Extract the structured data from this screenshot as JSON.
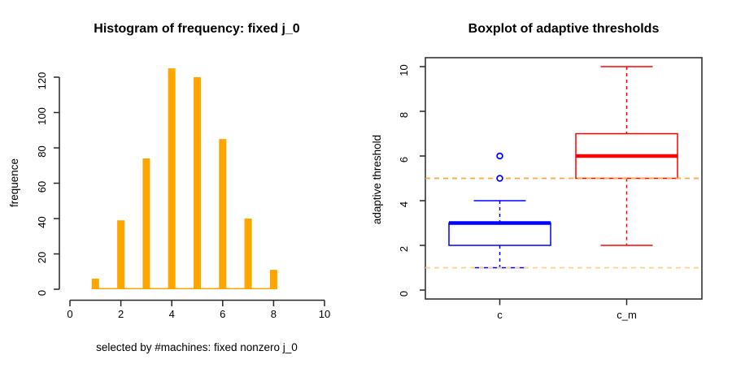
{
  "figure": {
    "background": "#ffffff",
    "axis_color": "#262626",
    "text_color": "#000000"
  },
  "chart_data": [
    {
      "panel": "left",
      "type": "bar",
      "title": "Histogram of frequency: fixed j_0",
      "xlabel": "selected by #machines: fixed nonzero j_0",
      "ylabel": "frequence",
      "categories": [
        1,
        2,
        3,
        4,
        5,
        6,
        7,
        8
      ],
      "values": [
        6,
        39,
        74,
        125,
        120,
        85,
        40,
        11
      ],
      "x_ticks": [
        "0",
        "2",
        "4",
        "6",
        "8",
        "10"
      ],
      "y_ticks": [
        "0",
        "20",
        "40",
        "60",
        "80",
        "100",
        "120"
      ],
      "xlim": [
        0,
        10
      ],
      "ylim": [
        0,
        120
      ],
      "grid": false,
      "bar_color": "#ffa500",
      "baseline_color": "#ffa500"
    },
    {
      "panel": "right",
      "type": "boxplot",
      "title": "Boxplot of adaptive thresholds",
      "xlabel": "",
      "ylabel": "adaptive threshold",
      "y_ticks": [
        "0",
        "2",
        "4",
        "6",
        "8",
        "10"
      ],
      "ylim": [
        0,
        10
      ],
      "grid": false,
      "groups": [
        {
          "label": "c",
          "color": "#0000ff",
          "whisker_low": 1,
          "q1": 2,
          "median": 3,
          "q3": 3,
          "whisker_high": 4,
          "outliers": [
            5,
            6
          ]
        },
        {
          "label": "c_m",
          "color": "#ff0000",
          "whisker_low": 2,
          "q1": 5,
          "median": 6,
          "q3": 7,
          "whisker_high": 10,
          "outliers": []
        }
      ],
      "threshold_lines": [
        {
          "value": 5,
          "color": "#ffa640",
          "style": "dashed"
        },
        {
          "value": 1,
          "color": "#ffd08f",
          "style": "dashed"
        }
      ]
    }
  ]
}
